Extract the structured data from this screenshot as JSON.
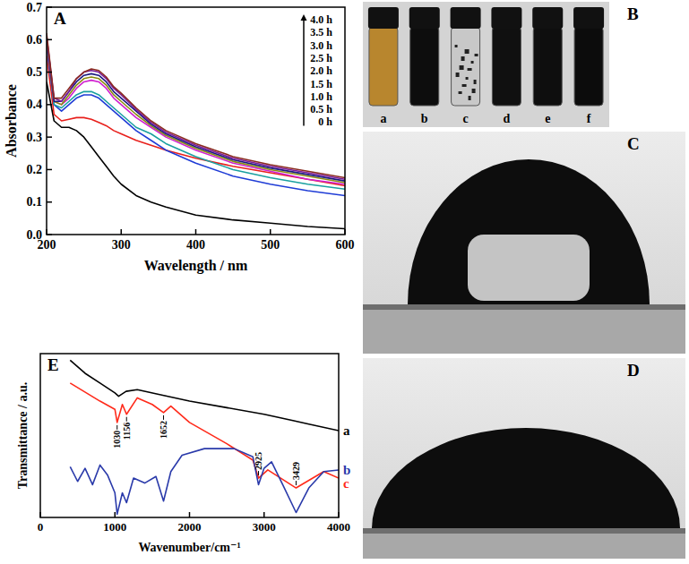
{
  "chart_data": [
    {
      "type": "line",
      "title": "A",
      "x_label": "Wavelength / nm",
      "y_label": "Absorbance",
      "x": [
        200,
        210,
        220,
        230,
        240,
        250,
        260,
        270,
        280,
        290,
        300,
        320,
        340,
        360,
        400,
        450,
        500,
        550,
        600
      ],
      "series": [
        {
          "name": "0 h",
          "color": "#000000",
          "values": [
            0.47,
            0.35,
            0.33,
            0.33,
            0.32,
            0.3,
            0.27,
            0.24,
            0.21,
            0.18,
            0.155,
            0.12,
            0.1,
            0.085,
            0.06,
            0.045,
            0.035,
            0.025,
            0.018
          ]
        },
        {
          "name": "0.5 h",
          "color": "#e8201c",
          "values": [
            0.55,
            0.37,
            0.35,
            0.355,
            0.36,
            0.36,
            0.355,
            0.345,
            0.335,
            0.32,
            0.31,
            0.29,
            0.275,
            0.26,
            0.235,
            0.21,
            0.19,
            0.17,
            0.15
          ]
        },
        {
          "name": "1.0 h",
          "color": "#1f3cd6",
          "values": [
            0.58,
            0.4,
            0.38,
            0.4,
            0.42,
            0.43,
            0.43,
            0.42,
            0.4,
            0.38,
            0.36,
            0.32,
            0.29,
            0.26,
            0.22,
            0.18,
            0.155,
            0.135,
            0.12
          ]
        },
        {
          "name": "1.5 h",
          "color": "#1aa0a0",
          "values": [
            0.6,
            0.4,
            0.39,
            0.41,
            0.43,
            0.44,
            0.44,
            0.43,
            0.41,
            0.39,
            0.37,
            0.33,
            0.31,
            0.28,
            0.24,
            0.2,
            0.175,
            0.155,
            0.14
          ]
        },
        {
          "name": "2.0 h",
          "color": "#d020d0",
          "values": [
            0.6,
            0.41,
            0.4,
            0.42,
            0.45,
            0.47,
            0.475,
            0.47,
            0.45,
            0.42,
            0.4,
            0.36,
            0.33,
            0.3,
            0.26,
            0.22,
            0.195,
            0.17,
            0.155
          ]
        },
        {
          "name": "2.5 h",
          "color": "#8a8a10",
          "values": [
            0.6,
            0.41,
            0.4,
            0.43,
            0.46,
            0.48,
            0.485,
            0.48,
            0.46,
            0.43,
            0.41,
            0.37,
            0.335,
            0.305,
            0.265,
            0.225,
            0.2,
            0.18,
            0.16
          ]
        },
        {
          "name": "3.0 h",
          "color": "#1a1a80",
          "values": [
            0.61,
            0.41,
            0.41,
            0.44,
            0.47,
            0.49,
            0.495,
            0.49,
            0.47,
            0.44,
            0.42,
            0.38,
            0.34,
            0.31,
            0.27,
            0.23,
            0.205,
            0.185,
            0.165
          ]
        },
        {
          "name": "3.5 h",
          "color": "#7a1a9a",
          "values": [
            0.61,
            0.42,
            0.41,
            0.44,
            0.48,
            0.5,
            0.505,
            0.5,
            0.48,
            0.45,
            0.43,
            0.385,
            0.345,
            0.315,
            0.275,
            0.235,
            0.21,
            0.19,
            0.17
          ]
        },
        {
          "name": "4.0 h",
          "color": "#8a2a20",
          "values": [
            0.62,
            0.42,
            0.42,
            0.45,
            0.48,
            0.5,
            0.51,
            0.505,
            0.485,
            0.455,
            0.435,
            0.39,
            0.35,
            0.32,
            0.28,
            0.24,
            0.215,
            0.195,
            0.175
          ]
        }
      ],
      "xlim": [
        200,
        600
      ],
      "xticks": [
        200,
        300,
        400,
        500,
        600
      ],
      "ylim": [
        0,
        0.7
      ],
      "yticks": [
        {
          "value": 0,
          "label": "0.0"
        },
        0.1,
        0.2,
        0.3,
        0.4,
        0.5,
        0.6,
        0.7
      ],
      "legend": "top-right"
    },
    {
      "type": "line",
      "title": "E",
      "x_label": "Wavenumber/cm⁻¹",
      "y_label": "Transmittance / a.u.",
      "series": [
        {
          "name": "a",
          "color": "#000000",
          "x": [
            400,
            600,
            800,
            1000,
            1050,
            1150,
            1300,
            1600,
            2000,
            2500,
            3000,
            3400,
            3600,
            4000
          ],
          "values": [
            9.6,
            8.8,
            8.2,
            7.6,
            7.4,
            7.7,
            7.8,
            7.5,
            7.1,
            6.7,
            6.3,
            5.9,
            5.7,
            5.3
          ]
        },
        {
          "name": "c",
          "color": "#ff2a1a",
          "x": [
            400,
            800,
            1000,
            1030,
            1100,
            1156,
            1300,
            1500,
            1652,
            1750,
            2000,
            2500,
            2850,
            2925,
            3050,
            3429,
            3800,
            4000
          ],
          "values": [
            8.2,
            7.1,
            6.6,
            5.8,
            6.9,
            6.3,
            7.3,
            6.9,
            6.4,
            6.8,
            5.8,
            4.5,
            3.5,
            2.4,
            2.9,
            1.8,
            2.8,
            2.4
          ]
        },
        {
          "name": "b",
          "color": "#2a3aaa",
          "x": [
            400,
            500,
            600,
            700,
            800,
            900,
            1000,
            1030,
            1100,
            1156,
            1250,
            1400,
            1550,
            1652,
            1750,
            1900,
            2200,
            2600,
            2850,
            2925,
            3000,
            3100,
            3250,
            3429,
            3600,
            3800,
            4000
          ],
          "values": [
            3.1,
            2.2,
            3.0,
            2.0,
            3.2,
            2.6,
            1.5,
            0.2,
            1.5,
            0.9,
            2.4,
            2.1,
            2.5,
            1.0,
            2.8,
            3.8,
            4.2,
            4.2,
            3.7,
            2.0,
            3.0,
            3.4,
            2.0,
            0.3,
            1.8,
            2.8,
            2.9
          ]
        }
      ],
      "xlim": [
        0,
        4000
      ],
      "xticks": [
        0,
        1000,
        2000,
        3000,
        4000
      ],
      "ylim": [
        0,
        10
      ],
      "tick_labels": "x",
      "annotations": [
        1030,
        1156,
        1652,
        2925,
        3429
      ]
    }
  ],
  "figure_panels": [
    {
      "title": "B",
      "vial_labels": [
        "a",
        "b",
        "c",
        "d",
        "e",
        "f"
      ]
    },
    {
      "title": "C"
    },
    {
      "title": "D"
    }
  ]
}
